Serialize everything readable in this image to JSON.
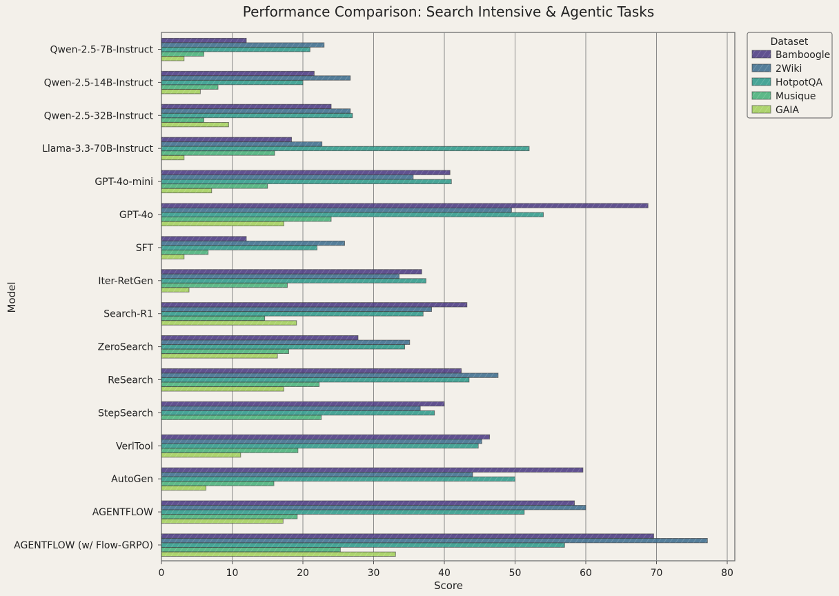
{
  "chart_data": {
    "type": "bar",
    "orientation": "horizontal",
    "title": "Performance Comparison: Search Intensive & Agentic Tasks",
    "xlabel": "Score",
    "ylabel": "Model",
    "xlim": [
      0,
      81
    ],
    "xticks": [
      0,
      10,
      20,
      30,
      40,
      50,
      60,
      70,
      80
    ],
    "grid": "vertical",
    "legend_title": "Dataset",
    "legend_position": "upper-right-outside",
    "categories": [
      "Qwen-2.5-7B-Instruct",
      "Qwen-2.5-14B-Instruct",
      "Qwen-2.5-32B-Instruct",
      "Llama-3.3-70B-Instruct",
      "GPT-4o-mini",
      "GPT-4o",
      "SFT",
      "Iter-RetGen",
      "Search-R1",
      "ZeroSearch",
      "ReSearch",
      "StepSearch",
      "VerlTool",
      "AutoGen",
      "AGENTFLOW",
      "AGENTFLOW (w/ Flow-GRPO)"
    ],
    "series": [
      {
        "name": "Bamboogle",
        "color": "#4b3a83",
        "values": [
          12.0,
          21.6,
          24.0,
          18.4,
          40.8,
          68.8,
          12.0,
          36.8,
          43.2,
          27.8,
          42.4,
          40.0,
          46.4,
          59.6,
          58.4,
          69.6
        ]
      },
      {
        "name": "2Wiki",
        "color": "#3e6d8e",
        "values": [
          23.0,
          26.7,
          26.7,
          22.7,
          35.6,
          49.5,
          25.9,
          33.6,
          38.2,
          35.1,
          47.6,
          36.6,
          45.3,
          44.0,
          60.0,
          77.2
        ]
      },
      {
        "name": "HotpotQA",
        "color": "#2f9a8b",
        "values": [
          21.0,
          20.0,
          27.0,
          52.0,
          41.0,
          54.0,
          22.0,
          37.4,
          37.0,
          34.4,
          43.5,
          38.6,
          44.8,
          50.0,
          51.3,
          57.0
        ]
      },
      {
        "name": "Musique",
        "color": "#48b07a",
        "values": [
          6.0,
          8.0,
          6.0,
          16.0,
          15.0,
          24.0,
          6.6,
          17.8,
          14.6,
          18.0,
          22.3,
          22.6,
          19.3,
          15.9,
          19.2,
          25.3
        ]
      },
      {
        "name": "GAIA",
        "color": "#a3cf5c",
        "values": [
          3.2,
          5.5,
          9.5,
          3.2,
          7.1,
          17.3,
          3.2,
          3.9,
          19.1,
          16.4,
          17.3,
          0,
          11.2,
          6.3,
          17.2,
          33.1
        ]
      }
    ]
  }
}
